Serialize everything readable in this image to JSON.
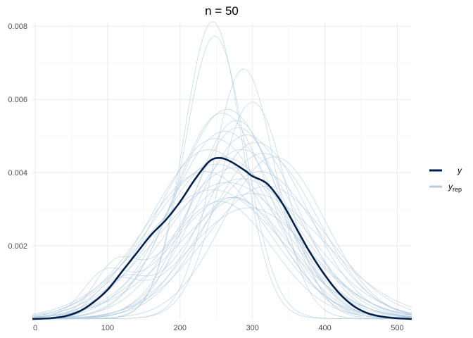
{
  "chart_data": {
    "type": "line",
    "title": "n = 50",
    "xlabel": "",
    "ylabel": "",
    "xlim": [
      -4,
      520
    ],
    "ylim": [
      0,
      0.0081
    ],
    "x_ticks": [
      0,
      100,
      200,
      300,
      400,
      500
    ],
    "x_tick_labels": [
      "0",
      "100",
      "200",
      "300",
      "400",
      "500"
    ],
    "y_ticks": [
      0.002,
      0.004,
      0.006,
      0.008
    ],
    "y_tick_labels": [
      "0.002",
      "0.004",
      "0.006",
      "0.008"
    ],
    "grid": true,
    "legend_position": "right",
    "legend": [
      {
        "label": "y",
        "subscript": "",
        "color": "#011f4b"
      },
      {
        "label": "y",
        "subscript": "rep",
        "color": "#b3cde0"
      }
    ],
    "series": [
      {
        "name": "y",
        "color": "#011f4b",
        "x": [
          -4,
          20,
          40,
          60,
          80,
          100,
          120,
          140,
          160,
          180,
          200,
          220,
          240,
          255,
          270,
          290,
          300,
          320,
          340,
          360,
          380,
          400,
          420,
          440,
          460,
          480,
          500,
          520
        ],
        "y": [
          0,
          2e-05,
          7e-05,
          0.0002,
          0.00045,
          0.0008,
          0.0013,
          0.0018,
          0.0023,
          0.0027,
          0.0032,
          0.0038,
          0.0043,
          0.0044,
          0.0043,
          0.00405,
          0.0039,
          0.0037,
          0.0032,
          0.0025,
          0.0018,
          0.0012,
          0.0007,
          0.00035,
          0.00015,
          6e-05,
          2e-05,
          0
        ]
      }
    ],
    "replicates": {
      "color": "#b3cde0",
      "count": 30,
      "params": [
        [
          245,
          40,
          0.0081,
          0,
          0,
          1
        ],
        [
          248,
          42,
          0.0077,
          0,
          0,
          1
        ],
        [
          288,
          43,
          0.0068,
          0,
          0,
          1
        ],
        [
          300,
          47,
          0.0059,
          0,
          0,
          1
        ],
        [
          265,
          70,
          0.0057,
          0,
          0,
          1
        ],
        [
          275,
          68,
          0.0055,
          0.0009,
          120,
          0.6
        ],
        [
          255,
          72,
          0.0053,
          0.0012,
          110,
          0.6
        ],
        [
          280,
          65,
          0.0052,
          0,
          0,
          1
        ],
        [
          262,
          75,
          0.0051,
          0,
          0,
          1
        ],
        [
          292,
          70,
          0.005,
          0,
          0,
          1
        ],
        [
          248,
          78,
          0.0049,
          0,
          0,
          1
        ],
        [
          305,
          72,
          0.0048,
          0,
          0,
          1
        ],
        [
          270,
          82,
          0.0047,
          0.001,
          95,
          0.7
        ],
        [
          285,
          78,
          0.0046,
          0,
          0,
          1
        ],
        [
          240,
          80,
          0.0046,
          0,
          0,
          1
        ],
        [
          315,
          75,
          0.0045,
          0,
          0,
          1
        ],
        [
          260,
          85,
          0.0044,
          0,
          0,
          1
        ],
        [
          295,
          85,
          0.0043,
          0.0008,
          110,
          0.7
        ],
        [
          330,
          70,
          0.0044,
          0,
          0,
          1
        ],
        [
          250,
          90,
          0.0042,
          0,
          0,
          1
        ],
        [
          275,
          88,
          0.0041,
          0,
          0,
          1
        ],
        [
          310,
          80,
          0.004,
          0,
          0,
          1
        ],
        [
          235,
          85,
          0.004,
          0,
          0,
          1
        ],
        [
          285,
          92,
          0.0038,
          0,
          0,
          1
        ],
        [
          265,
          95,
          0.0037,
          0,
          0,
          1
        ],
        [
          320,
          85,
          0.0036,
          0,
          0,
          1
        ],
        [
          300,
          100,
          0.0034,
          0,
          0,
          1
        ],
        [
          245,
          95,
          0.0035,
          0,
          0,
          1
        ],
        [
          278,
          60,
          0.0054,
          0,
          0,
          1
        ],
        [
          258,
          66,
          0.0056,
          0,
          0,
          1
        ]
      ]
    }
  }
}
